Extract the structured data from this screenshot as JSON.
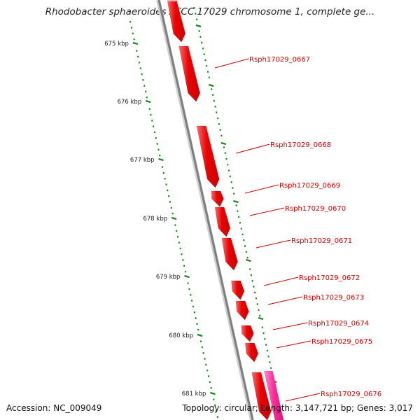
{
  "header": {
    "title": "Rhodobacter sphaeroides ATCC 17029 chromosome 1, complete ge..."
  },
  "footer": {
    "accession": "Accession: NC_009049",
    "summary": "Topology: circular; Length: 3,147,721 bp; Genes: 3,017"
  },
  "colors": {
    "gene": "#ee0000",
    "gene_alt": "#ff2a9a",
    "tick": "#1a8a1a",
    "label": "#d40000",
    "backbone": "#8a8a8a"
  },
  "ruler": {
    "ticks": [
      {
        "label": "675 kbp"
      },
      {
        "label": "676 kbp"
      },
      {
        "label": "677 kbp"
      },
      {
        "label": "678 kbp"
      },
      {
        "label": "679 kbp"
      },
      {
        "label": "680 kbp"
      },
      {
        "label": "681 kbp"
      }
    ]
  },
  "genes": [
    {
      "label": "Rsph17029_0667"
    },
    {
      "label": "Rsph17029_0668"
    },
    {
      "label": "Rsph17029_0669"
    },
    {
      "label": "Rsph17029_0670"
    },
    {
      "label": "Rsph17029_0671"
    },
    {
      "label": "Rsph17029_0672"
    },
    {
      "label": "Rsph17029_0673"
    },
    {
      "label": "Rsph17029_0674"
    },
    {
      "label": "Rsph17029_0675"
    },
    {
      "label": "Rsph17029_0676"
    }
  ]
}
